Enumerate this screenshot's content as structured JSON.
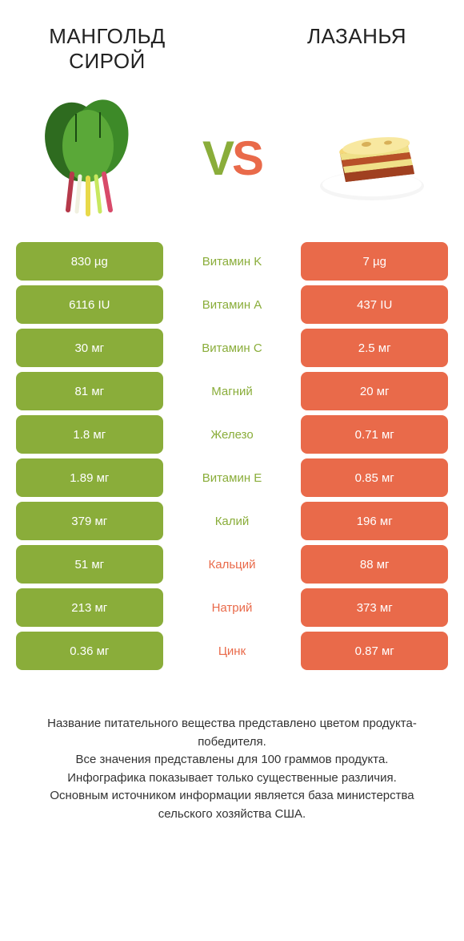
{
  "colors": {
    "left": "#8aad3a",
    "right": "#e96a4a",
    "bg": "#ffffff",
    "text": "#333333"
  },
  "header": {
    "left_title": "МАНГОЛЬД СИРОЙ",
    "right_title": "ЛАЗАНЬЯ",
    "vs_v": "V",
    "vs_s": "S"
  },
  "rows": [
    {
      "left": "830 µg",
      "mid": "Витамин K",
      "right": "7 µg",
      "winner": "left"
    },
    {
      "left": "6116 IU",
      "mid": "Витамин A",
      "right": "437 IU",
      "winner": "left"
    },
    {
      "left": "30 мг",
      "mid": "Витамин C",
      "right": "2.5 мг",
      "winner": "left"
    },
    {
      "left": "81 мг",
      "mid": "Магний",
      "right": "20 мг",
      "winner": "left"
    },
    {
      "left": "1.8 мг",
      "mid": "Железо",
      "right": "0.71 мг",
      "winner": "left"
    },
    {
      "left": "1.89 мг",
      "mid": "Витамин E",
      "right": "0.85 мг",
      "winner": "left"
    },
    {
      "left": "379 мг",
      "mid": "Калий",
      "right": "196 мг",
      "winner": "left"
    },
    {
      "left": "51 мг",
      "mid": "Кальций",
      "right": "88 мг",
      "winner": "right"
    },
    {
      "left": "213 мг",
      "mid": "Натрий",
      "right": "373 мг",
      "winner": "right"
    },
    {
      "left": "0.36 мг",
      "mid": "Цинк",
      "right": "0.87 мг",
      "winner": "right"
    }
  ],
  "footer": {
    "line1": "Название питательного вещества представлено цветом продукта-победителя.",
    "line2": "Все значения представлены для 100 граммов продукта.",
    "line3": "Инфографика показывает только существенные различия.",
    "line4": "Основным источником информации является база министерства сельского хозяйства США."
  }
}
